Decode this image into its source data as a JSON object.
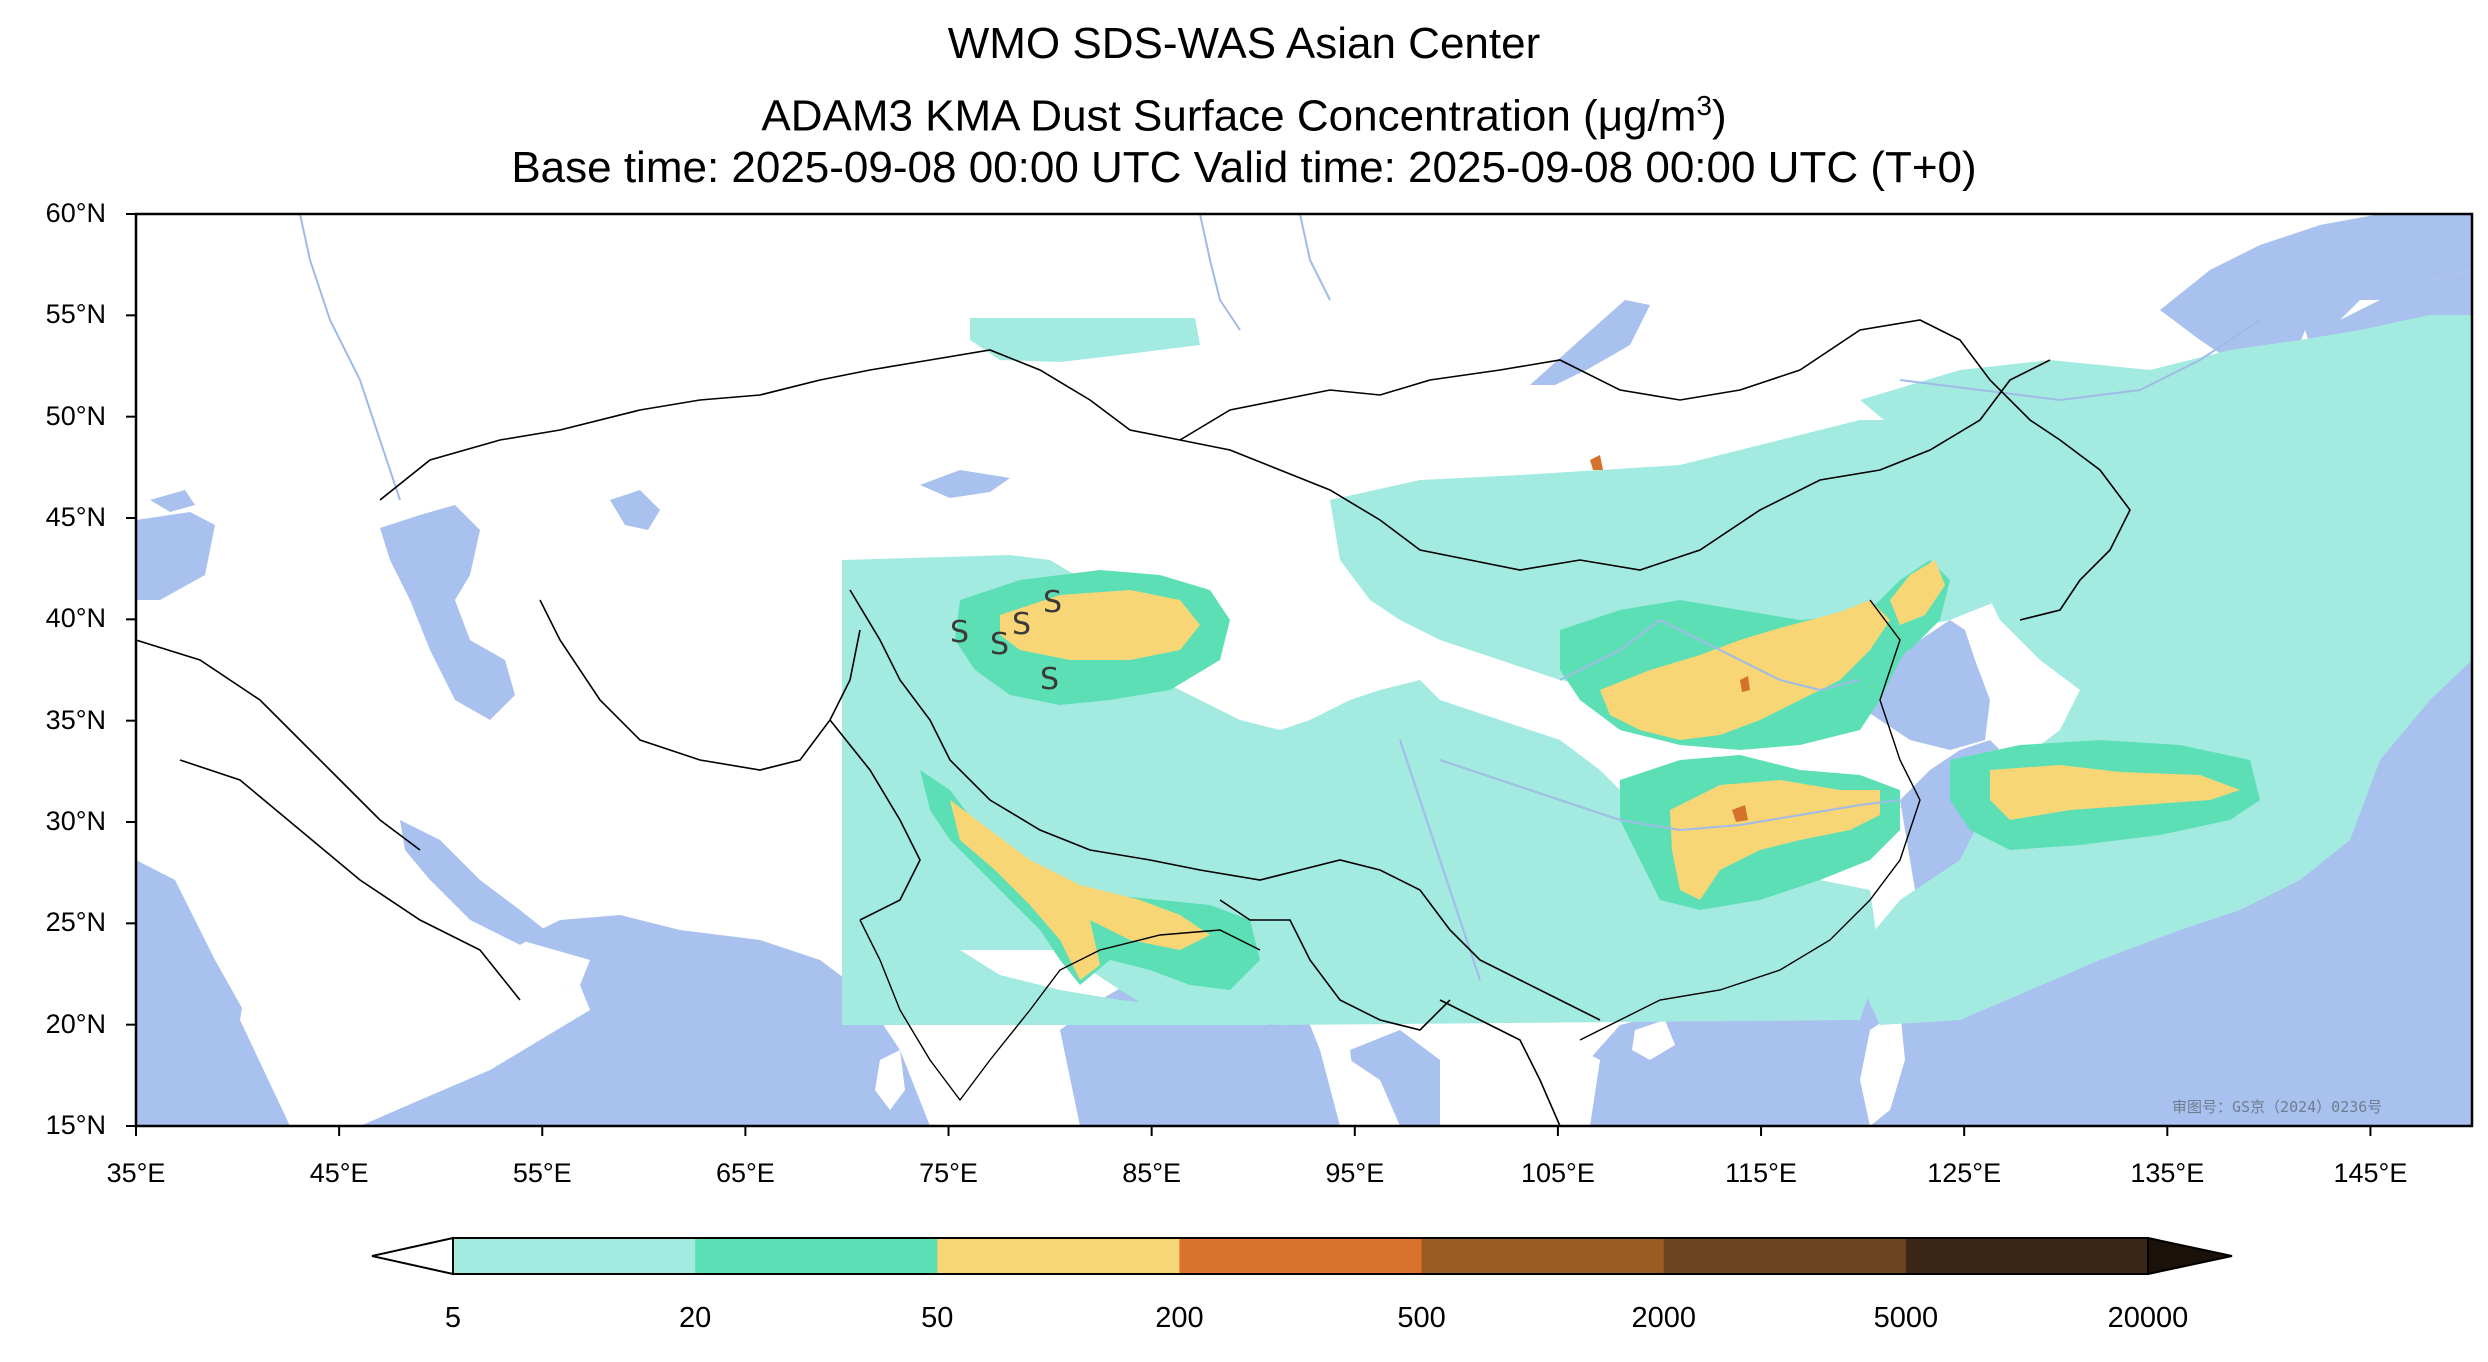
{
  "title": {
    "line1": "WMO SDS-WAS Asian Center",
    "line2_prefix": "ADAM3 KMA Dust Surface Concentration (",
    "line2_unit_mu": "μ",
    "line2_unit": "g/m",
    "line2_sup": "3",
    "line2_suffix": ")",
    "line3": "Base time: 2025-09-08 00:00 UTC Valid time: 2025-09-08 00:00 UTC (T+0)"
  },
  "map": {
    "lon_range": [
      35,
      150
    ],
    "lat_range": [
      15,
      60
    ],
    "lat_ticks": [
      "60°N",
      "55°N",
      "50°N",
      "45°N",
      "40°N",
      "35°N",
      "30°N",
      "25°N",
      "20°N",
      "15°N"
    ],
    "lon_ticks": [
      "35°E",
      "45°E",
      "55°E",
      "65°E",
      "75°E",
      "85°E",
      "95°E",
      "105°E",
      "115°E",
      "125°E",
      "135°E",
      "145°E"
    ],
    "colors": {
      "ocean": "#a9c1ee",
      "land": "#ffffff",
      "level_5_20": "#a3ebe0",
      "level_20_50": "#5ddfb5",
      "level_50_200": "#f9d675",
      "level_200_500": "#d4722c",
      "border": "#000000",
      "river": "#9fbce6"
    },
    "station_marker": "S",
    "stamp": "审图号：GS京（2024）0236号"
  },
  "colorbar": {
    "labels": [
      "5",
      "20",
      "50",
      "200",
      "500",
      "2000",
      "5000",
      "20000"
    ],
    "colors": [
      "#a3ebe0",
      "#5ddfb5",
      "#f9d675",
      "#d9722d",
      "#9b5c24",
      "#6b4520",
      "#3c2616"
    ],
    "under_color": "#ffffff",
    "over_color": "#1b1108"
  }
}
